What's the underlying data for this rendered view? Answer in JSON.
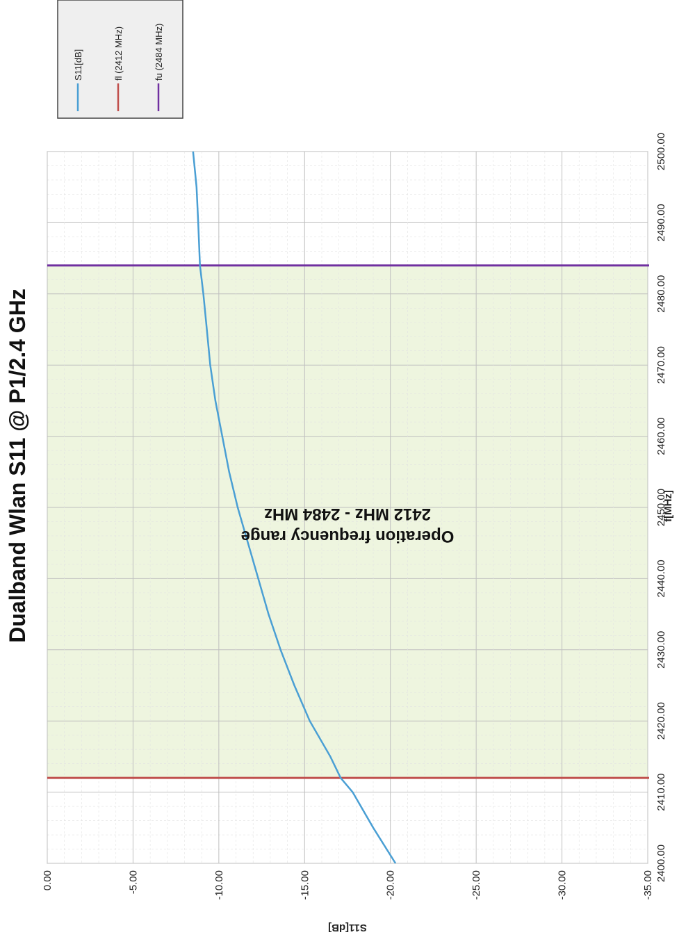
{
  "chart_data": {
    "type": "line",
    "title": "Dualband Wlan S11 @ P1/2.4 GHz",
    "xlabel": "f[MHz]",
    "ylabel": "S11[dB]",
    "xlim": [
      2400,
      2500
    ],
    "ylim": [
      -35,
      0
    ],
    "x_ticks": [
      "2400.00",
      "2410.00",
      "2420.00",
      "2430.00",
      "2440.00",
      "2450.00",
      "2460.00",
      "2470.00",
      "2480.00",
      "2490.00",
      "2500.00"
    ],
    "y_ticks": [
      "0.00",
      "-5.00",
      "-10.00",
      "-15.00",
      "-20.00",
      "-25.00",
      "-30.00",
      "-35.00"
    ],
    "grid": true,
    "orientation": "rotated 90 degrees clockwise",
    "legend_position": "top-right",
    "legend": [
      "S11[dB]",
      "fl (2412 MHz)",
      "fu (2484 MHz)"
    ],
    "series": [
      {
        "name": "S11[dB]",
        "color": "#4a9fd4",
        "x": [
          2400,
          2405,
          2410,
          2412,
          2415,
          2420,
          2425,
          2430,
          2435,
          2440,
          2445,
          2450,
          2455,
          2460,
          2465,
          2470,
          2475,
          2480,
          2484,
          2490,
          2495,
          2500
        ],
        "y": [
          -20.3,
          -19.0,
          -17.8,
          -17.1,
          -16.5,
          -15.3,
          -14.4,
          -13.6,
          -12.9,
          -12.3,
          -11.7,
          -11.1,
          -10.6,
          -10.2,
          -9.8,
          -9.5,
          -9.3,
          -9.1,
          -8.9,
          -8.8,
          -8.7,
          -8.5
        ]
      },
      {
        "name": "fl (2412 MHz)",
        "color": "#c0504d",
        "x": [
          2412,
          2412
        ],
        "y": [
          0,
          -35
        ]
      },
      {
        "name": "fu (2484 MHz)",
        "color": "#7030a0",
        "x": [
          2484,
          2484
        ],
        "y": [
          0,
          -35
        ]
      }
    ],
    "shaded_region": {
      "x": [
        2412,
        2484
      ],
      "color": "#eef5df"
    },
    "annotations": [
      "Operation frequency range",
      "2412 MHz - 2484 MHz"
    ]
  }
}
